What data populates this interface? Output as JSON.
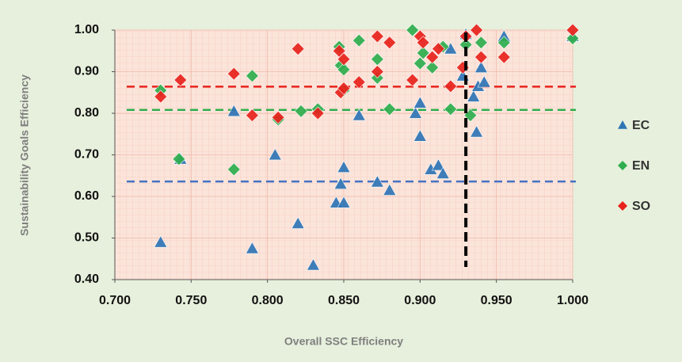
{
  "chart_data": {
    "type": "scatter",
    "x_label": "Overall SSC Efficiency",
    "y_label": "Sustainability Goals Efficiency",
    "xlim": [
      0.7,
      1.0
    ],
    "ylim": [
      0.4,
      1.0
    ],
    "xticks": [
      {
        "value": 0.7,
        "label": "0.700"
      },
      {
        "value": 0.75,
        "label": "0.750"
      },
      {
        "value": 0.8,
        "label": "0.800"
      },
      {
        "value": 0.85,
        "label": "0.850"
      },
      {
        "value": 0.9,
        "label": "0.900"
      },
      {
        "value": 0.95,
        "label": "0.950"
      },
      {
        "value": 1.0,
        "label": "1.000"
      }
    ],
    "yticks": [
      {
        "value": 0.4,
        "label": "0.40"
      },
      {
        "value": 0.5,
        "label": "0.50"
      },
      {
        "value": 0.6,
        "label": "0.60"
      },
      {
        "value": 0.7,
        "label": "0.70"
      },
      {
        "value": 0.8,
        "label": "0.80"
      },
      {
        "value": 0.9,
        "label": "0.90"
      },
      {
        "value": 1.0,
        "label": "1.00"
      }
    ],
    "grid": true,
    "legend": "right",
    "series": [
      {
        "name": "EC",
        "color": "#2e75b6",
        "marker": "triangle",
        "x": [
          0.73,
          0.743,
          0.778,
          0.79,
          0.805,
          0.82,
          0.83,
          0.845,
          0.848,
          0.85,
          0.85,
          0.86,
          0.872,
          0.88,
          0.897,
          0.9,
          0.9,
          0.907,
          0.912,
          0.915,
          0.92,
          0.928,
          0.93,
          0.935,
          0.937,
          0.938,
          0.94,
          0.942,
          0.955,
          1.0
        ],
        "values": [
          0.49,
          0.69,
          0.805,
          0.475,
          0.7,
          0.535,
          0.435,
          0.585,
          0.63,
          0.585,
          0.67,
          0.795,
          0.635,
          0.615,
          0.8,
          0.745,
          0.825,
          0.665,
          0.675,
          0.655,
          0.955,
          0.89,
          0.99,
          0.84,
          0.755,
          0.865,
          0.91,
          0.875,
          0.985,
          0.985
        ]
      },
      {
        "name": "EN",
        "color": "#2fae4e",
        "marker": "diamond",
        "x": [
          0.73,
          0.742,
          0.778,
          0.79,
          0.807,
          0.822,
          0.833,
          0.847,
          0.848,
          0.85,
          0.85,
          0.86,
          0.872,
          0.872,
          0.88,
          0.895,
          0.9,
          0.902,
          0.908,
          0.915,
          0.92,
          0.93,
          0.933,
          0.94,
          0.955,
          1.0
        ],
        "values": [
          0.855,
          0.69,
          0.665,
          0.89,
          0.785,
          0.805,
          0.81,
          0.96,
          0.915,
          0.905,
          0.855,
          0.975,
          0.93,
          0.885,
          0.81,
          1.0,
          0.92,
          0.945,
          0.91,
          0.96,
          0.81,
          0.965,
          0.795,
          0.97,
          0.97,
          0.98
        ]
      },
      {
        "name": "SO",
        "color": "#e8221c",
        "marker": "diamond",
        "x": [
          0.73,
          0.743,
          0.778,
          0.79,
          0.807,
          0.82,
          0.833,
          0.847,
          0.848,
          0.85,
          0.85,
          0.86,
          0.872,
          0.872,
          0.88,
          0.895,
          0.9,
          0.902,
          0.908,
          0.912,
          0.92,
          0.928,
          0.93,
          0.937,
          0.94,
          0.955,
          1.0
        ],
        "values": [
          0.84,
          0.88,
          0.895,
          0.795,
          0.79,
          0.955,
          0.8,
          0.95,
          0.85,
          0.93,
          0.86,
          0.875,
          0.985,
          0.9,
          0.97,
          0.88,
          0.985,
          0.97,
          0.935,
          0.955,
          0.865,
          0.91,
          0.985,
          1.0,
          0.935,
          0.935,
          1.0
        ]
      }
    ],
    "reference_lines": [
      {
        "orientation": "horizontal",
        "value": 0.864,
        "color": "#e8221c"
      },
      {
        "orientation": "horizontal",
        "value": 0.808,
        "color": "#2fae4e"
      },
      {
        "orientation": "horizontal",
        "value": 0.636,
        "color": "#4472c4"
      },
      {
        "orientation": "vertical",
        "value": 0.93,
        "color": "#000000"
      }
    ]
  }
}
